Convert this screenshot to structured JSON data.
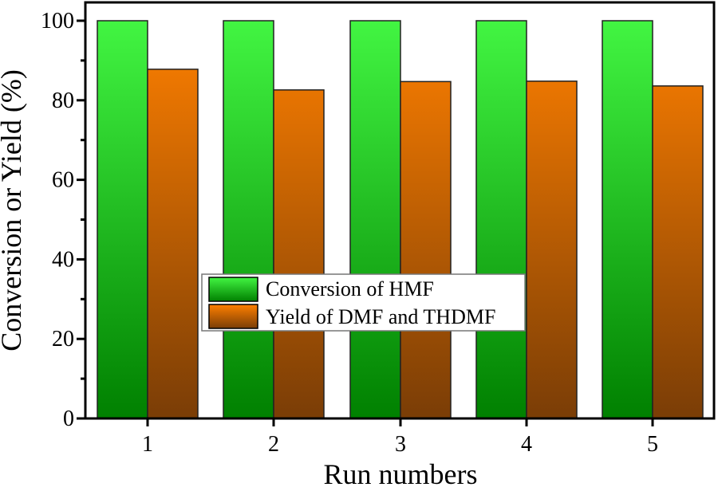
{
  "chart_data": {
    "type": "bar",
    "title": "",
    "xlabel": "Run numbers",
    "ylabel": "Conversion or Yield (%)",
    "categories": [
      "1",
      "2",
      "3",
      "4",
      "5"
    ],
    "series": [
      {
        "name": "Conversion of HMF",
        "values": [
          100,
          100,
          100,
          100,
          100
        ],
        "color_top": "#42f542",
        "color_bottom": "#008000"
      },
      {
        "name": "Yield of DMF and THDMF",
        "values": [
          87.8,
          82.6,
          84.7,
          84.8,
          83.6
        ],
        "color_top": "#ff8000",
        "color_bottom": "#7a3d06"
      }
    ],
    "ylim": [
      0,
      100
    ],
    "yticks": [
      0,
      20,
      40,
      60,
      80,
      100
    ],
    "grid": false,
    "legend_position": "center-left inside"
  }
}
